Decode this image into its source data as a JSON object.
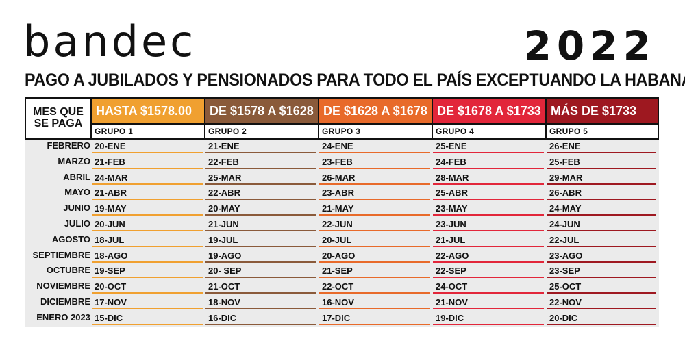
{
  "header": {
    "logo": "bandec",
    "year": "2022",
    "subtitle": "PAGO A JUBILADOS Y PENSIONADOS PARA TODO EL PAÍS EXCEPTUANDO LA HABANA"
  },
  "table": {
    "corner_label": "MES QUE SE PAGA",
    "groups": [
      {
        "range": "HASTA $1578.00",
        "name": "GRUPO 1",
        "color": "#f0a030",
        "text_color": "#ffffff"
      },
      {
        "range": "DE $1578 A $1628",
        "name": "GRUPO 2",
        "color": "#8a5a3a",
        "text_color": "#ffffff"
      },
      {
        "range": "DE $1628 A $1678",
        "name": "GRUPO 3",
        "color": "#e86a2a",
        "text_color": "#ffffff"
      },
      {
        "range": "DE $1678 A $1733",
        "name": "GRUPO 4",
        "color": "#e2263a",
        "text_color": "#ffffff"
      },
      {
        "range": "MÁS DE $1733",
        "name": "GRUPO 5",
        "color": "#9e1820",
        "text_color": "#ffffff"
      }
    ],
    "rows": [
      {
        "month": "FEBRERO",
        "dates": [
          "20-ENE",
          "21-ENE",
          "24-ENE",
          "25-ENE",
          "26-ENE"
        ]
      },
      {
        "month": "MARZO",
        "dates": [
          "21-FEB",
          "22-FEB",
          "23-FEB",
          "24-FEB",
          "25-FEB"
        ]
      },
      {
        "month": "ABRIL",
        "dates": [
          "24-MAR",
          "25-MAR",
          "26-MAR",
          "28-MAR",
          "29-MAR"
        ]
      },
      {
        "month": "MAYO",
        "dates": [
          "21-ABR",
          "22-ABR",
          "23-ABR",
          "25-ABR",
          "26-ABR"
        ]
      },
      {
        "month": "JUNIO",
        "dates": [
          "19-MAY",
          "20-MAY",
          "21-MAY",
          "23-MAY",
          "24-MAY"
        ]
      },
      {
        "month": "JULIO",
        "dates": [
          "20-JUN",
          "21-JUN",
          "22-JUN",
          "23-JUN",
          "24-JUN"
        ]
      },
      {
        "month": "AGOSTO",
        "dates": [
          "18-JUL",
          "19-JUL",
          "20-JUL",
          "21-JUL",
          "22-JUL"
        ]
      },
      {
        "month": "SEPTIEMBRE",
        "dates": [
          "18-AGO",
          "19-AGO",
          "20-AGO",
          "22-AGO",
          "23-AGO"
        ]
      },
      {
        "month": "OCTUBRE",
        "dates": [
          "19-SEP",
          "20- SEP",
          "21-SEP",
          "22-SEP",
          "23-SEP"
        ]
      },
      {
        "month": "NOVIEMBRE",
        "dates": [
          "20-OCT",
          "21-OCT",
          "22-OCT",
          "24-OCT",
          "25-OCT"
        ]
      },
      {
        "month": "DICIEMBRE",
        "dates": [
          "17-NOV",
          "18-NOV",
          "16-NOV",
          "21-NOV",
          "22-NOV"
        ]
      },
      {
        "month": "ENERO 2023",
        "dates": [
          "15-DIC",
          "16-DIC",
          "17-DIC",
          "19-DIC",
          "20-DIC"
        ]
      }
    ]
  }
}
